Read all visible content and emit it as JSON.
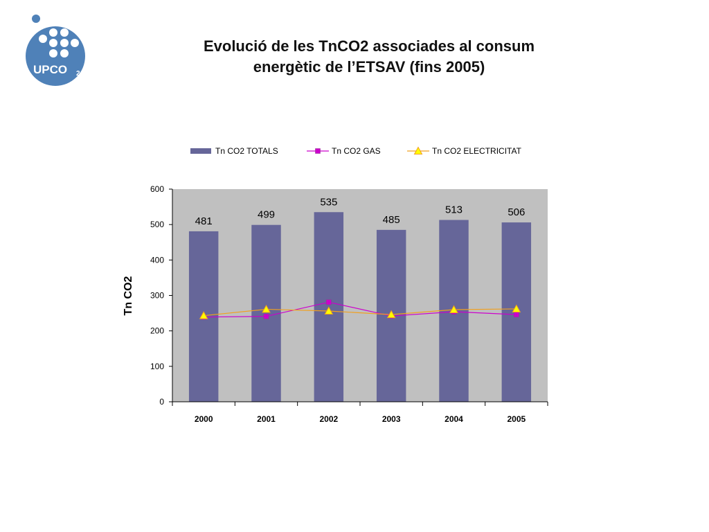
{
  "logo": {
    "text": "UPCO",
    "subscript": "2",
    "color": "#4f81b8"
  },
  "title": {
    "line1": "Evolució de les  TnCO2 associades al consum",
    "line2": "energètic de l’ETSAV (fins 2005)"
  },
  "chart_data": {
    "type": "bar",
    "categories": [
      "2000",
      "2001",
      "2002",
      "2003",
      "2004",
      "2005"
    ],
    "ylabel": "Tn CO2",
    "xlabel": "",
    "ylim": [
      0,
      600
    ],
    "yticks": [
      0,
      100,
      200,
      300,
      400,
      500,
      600
    ],
    "grid": false,
    "legend_position": "top",
    "series": [
      {
        "name": "Tn CO2 TOTALS",
        "kind": "bar",
        "color": "#666699",
        "values": [
          481,
          499,
          535,
          485,
          513,
          506
        ],
        "labels": [
          "481",
          "499",
          "535",
          "485",
          "513",
          "506"
        ]
      },
      {
        "name": "Tn CO2 GAS",
        "kind": "line",
        "marker": "square",
        "color": "#cc00cc",
        "values": [
          239,
          241,
          281,
          242,
          254,
          246
        ]
      },
      {
        "name": "Tn CO2 ELECTRICITAT",
        "kind": "line",
        "marker": "triangle",
        "color": "#f0a020",
        "marker_fill": "#ffff00",
        "values": [
          243,
          261,
          256,
          246,
          260,
          262
        ]
      }
    ]
  }
}
